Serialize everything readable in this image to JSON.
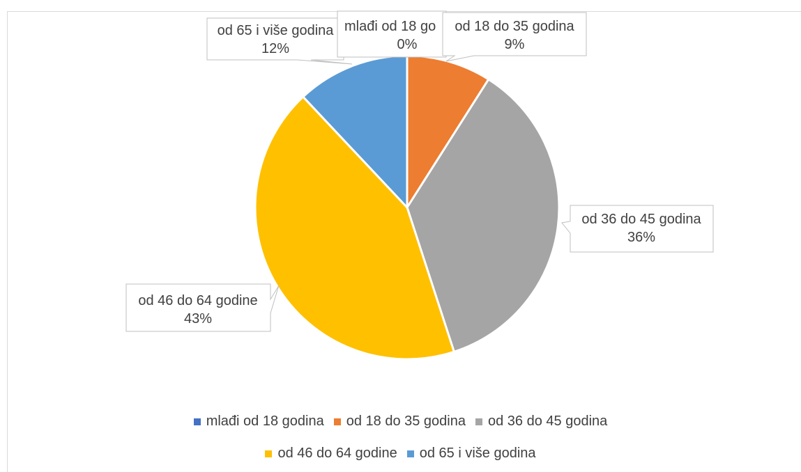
{
  "chart_data": {
    "type": "pie",
    "slices": [
      {
        "label": "mlađi od 18 godina",
        "value": 0,
        "display": "0%",
        "color": "#4472C4",
        "callout_label": "mlađi od 18 go"
      },
      {
        "label": "od 18 do 35 godina",
        "value": 9,
        "display": "9%",
        "color": "#ED7D31",
        "callout_label": "od 18 do 35 godina"
      },
      {
        "label": "od 36 do 45 godina",
        "value": 36,
        "display": "36%",
        "color": "#A5A5A5",
        "callout_label": "od 36 do 45 godina"
      },
      {
        "label": "od 46 do 64 godine",
        "value": 43,
        "display": "43%",
        "color": "#FFC000",
        "callout_label": "od 46 do 64 godine"
      },
      {
        "label": "od 65 i više godina",
        "value": 12,
        "display": "12%",
        "color": "#5B9BD5",
        "callout_label": "od 65 i više godina"
      }
    ],
    "legend_position": "bottom"
  }
}
